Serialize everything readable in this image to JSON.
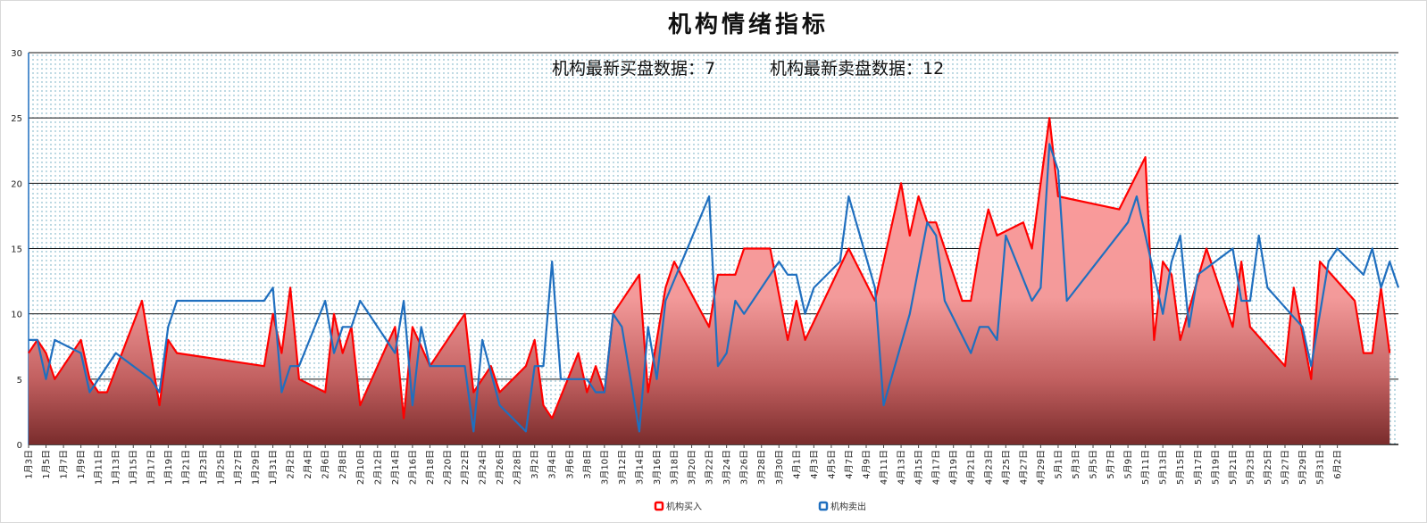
{
  "chart_data": {
    "type": "area",
    "title": "机构情绪指标",
    "subtitle_buy": "机构最新买盘数据：7",
    "subtitle_sell": "机构最新卖盘数据：12",
    "ylim": [
      0,
      30
    ],
    "yticks": [
      0,
      5,
      10,
      15,
      20,
      25,
      30
    ],
    "grid": true,
    "legend_position": "bottom-center",
    "tick_labels": [
      "1月3日",
      "1月5日",
      "1月7日",
      "1月9日",
      "1月11日",
      "1月13日",
      "1月15日",
      "1月17日",
      "1月19日",
      "1月21日",
      "1月23日",
      "1月25日",
      "1月27日",
      "1月29日",
      "1月31日",
      "2月2日",
      "2月4日",
      "2月6日",
      "2月8日",
      "2月10日",
      "2月12日",
      "2月14日",
      "2月16日",
      "2月18日",
      "2月20日",
      "2月22日",
      "2月24日",
      "2月26日",
      "2月28日",
      "3月2日",
      "3月4日",
      "3月6日",
      "3月8日",
      "3月10日",
      "3月12日",
      "3月14日",
      "3月16日",
      "3月18日",
      "3月20日",
      "3月22日",
      "3月24日",
      "3月26日",
      "3月28日",
      "3月30日",
      "4月1日",
      "4月3日",
      "4月5日",
      "4月7日",
      "4月9日",
      "4月11日",
      "4月13日",
      "4月15日",
      "4月17日",
      "4月19日",
      "4月21日",
      "4月23日",
      "4月25日",
      "4月27日",
      "4月29日",
      "5月1日",
      "5月3日",
      "5月5日",
      "5月7日",
      "5月9日",
      "5月11日",
      "5月13日",
      "5月15日",
      "5月17日",
      "5月19日",
      "5月21日",
      "5月23日",
      "5月25日",
      "5月27日",
      "5月29日",
      "5月31日",
      "6月2日"
    ],
    "series": [
      {
        "name": "机构买入",
        "color": "#ff0000",
        "points": [
          [
            0,
            7
          ],
          [
            0.5,
            8
          ],
          [
            1,
            7
          ],
          [
            1.5,
            5
          ],
          [
            3,
            8
          ],
          [
            3.5,
            5
          ],
          [
            4,
            4
          ],
          [
            4.5,
            4
          ],
          [
            6.5,
            11
          ],
          [
            7.5,
            3
          ],
          [
            8,
            8
          ],
          [
            8.5,
            7
          ],
          [
            13.5,
            6
          ],
          [
            14,
            10
          ],
          [
            14.5,
            7
          ],
          [
            15,
            12
          ],
          [
            15.5,
            5
          ],
          [
            17,
            4
          ],
          [
            17.5,
            10
          ],
          [
            18,
            7
          ],
          [
            18.5,
            9
          ],
          [
            19,
            3
          ],
          [
            21,
            9
          ],
          [
            21.5,
            2
          ],
          [
            22,
            9
          ],
          [
            23,
            6
          ],
          [
            25,
            10
          ],
          [
            25.5,
            4
          ],
          [
            26.5,
            6
          ],
          [
            27,
            4
          ],
          [
            28.5,
            6
          ],
          [
            29,
            8
          ],
          [
            29.5,
            3
          ],
          [
            30,
            2
          ],
          [
            31.5,
            7
          ],
          [
            32,
            4
          ],
          [
            32.5,
            6
          ],
          [
            33,
            4
          ],
          [
            33.5,
            10
          ],
          [
            35,
            13
          ],
          [
            35.5,
            4
          ],
          [
            36.5,
            12
          ],
          [
            37,
            14
          ],
          [
            39,
            9
          ],
          [
            39.5,
            13
          ],
          [
            40.5,
            13
          ],
          [
            41,
            15
          ],
          [
            42.5,
            15
          ],
          [
            43.5,
            8
          ],
          [
            44,
            11
          ],
          [
            44.5,
            8
          ],
          [
            47,
            15
          ],
          [
            48.5,
            11
          ],
          [
            50,
            20
          ],
          [
            50.5,
            16
          ],
          [
            51,
            19
          ],
          [
            51.5,
            17
          ],
          [
            52,
            17
          ],
          [
            53.5,
            11
          ],
          [
            54,
            11
          ],
          [
            54.5,
            15
          ],
          [
            55,
            18
          ],
          [
            55.5,
            16
          ],
          [
            57,
            17
          ],
          [
            57.5,
            15
          ],
          [
            58.5,
            25
          ],
          [
            59,
            19
          ],
          [
            62.5,
            18
          ],
          [
            64,
            22
          ],
          [
            64.5,
            8
          ],
          [
            65,
            14
          ],
          [
            65.5,
            13
          ],
          [
            66,
            8
          ],
          [
            67.5,
            15
          ],
          [
            68.5,
            11
          ],
          [
            69,
            9
          ],
          [
            69.5,
            14
          ],
          [
            70,
            9
          ],
          [
            72,
            6
          ],
          [
            72.5,
            12
          ],
          [
            73.5,
            5
          ],
          [
            74,
            14
          ],
          [
            76,
            11
          ],
          [
            76.5,
            7
          ],
          [
            77,
            7
          ],
          [
            77.5,
            12
          ],
          [
            78,
            7
          ]
        ]
      },
      {
        "name": "机构卖出",
        "color": "#1f6fbf",
        "points": [
          [
            0,
            8
          ],
          [
            0.5,
            8
          ],
          [
            1,
            5
          ],
          [
            1.5,
            8
          ],
          [
            3,
            7
          ],
          [
            3.5,
            4
          ],
          [
            5,
            7
          ],
          [
            7,
            5
          ],
          [
            7.5,
            4
          ],
          [
            8,
            9
          ],
          [
            8.5,
            11
          ],
          [
            13.5,
            11
          ],
          [
            14,
            12
          ],
          [
            14.5,
            4
          ],
          [
            15,
            6
          ],
          [
            15.5,
            6
          ],
          [
            17,
            11
          ],
          [
            17.5,
            7
          ],
          [
            18,
            9
          ],
          [
            18.5,
            9
          ],
          [
            19,
            11
          ],
          [
            21,
            7
          ],
          [
            21.5,
            11
          ],
          [
            22,
            3
          ],
          [
            22.5,
            9
          ],
          [
            23,
            6
          ],
          [
            25,
            6
          ],
          [
            25.5,
            1
          ],
          [
            26,
            8
          ],
          [
            27,
            3
          ],
          [
            28.5,
            1
          ],
          [
            29,
            6
          ],
          [
            29.5,
            6
          ],
          [
            30,
            14
          ],
          [
            30.5,
            5
          ],
          [
            32,
            5
          ],
          [
            32.5,
            4
          ],
          [
            33,
            4
          ],
          [
            33.5,
            10
          ],
          [
            34,
            9
          ],
          [
            35,
            1
          ],
          [
            35.5,
            9
          ],
          [
            36,
            5
          ],
          [
            36.5,
            11
          ],
          [
            39,
            19
          ],
          [
            39.5,
            6
          ],
          [
            40,
            7
          ],
          [
            40.5,
            11
          ],
          [
            41,
            10
          ],
          [
            43,
            14
          ],
          [
            43.5,
            13
          ],
          [
            44,
            13
          ],
          [
            44.5,
            10
          ],
          [
            45,
            12
          ],
          [
            46.5,
            14
          ],
          [
            47,
            19
          ],
          [
            48.5,
            12
          ],
          [
            49,
            3
          ],
          [
            50.5,
            10
          ],
          [
            51.5,
            17
          ],
          [
            52,
            16
          ],
          [
            52.5,
            11
          ],
          [
            54,
            7
          ],
          [
            54.5,
            9
          ],
          [
            55,
            9
          ],
          [
            55.5,
            8
          ],
          [
            56,
            16
          ],
          [
            57.5,
            11
          ],
          [
            58,
            12
          ],
          [
            58.5,
            23
          ],
          [
            59,
            21
          ],
          [
            59.5,
            11
          ],
          [
            63,
            17
          ],
          [
            63.5,
            19
          ],
          [
            65,
            10
          ],
          [
            65.5,
            14
          ],
          [
            66,
            16
          ],
          [
            66.5,
            9
          ],
          [
            67,
            13
          ],
          [
            69,
            15
          ],
          [
            69.5,
            11
          ],
          [
            70,
            11
          ],
          [
            70.5,
            16
          ],
          [
            71,
            12
          ],
          [
            73,
            9
          ],
          [
            73.5,
            6
          ],
          [
            74.5,
            14
          ],
          [
            75,
            15
          ],
          [
            76.5,
            13
          ],
          [
            77,
            15
          ],
          [
            77.5,
            12
          ],
          [
            78,
            14
          ],
          [
            78.5,
            12
          ]
        ]
      }
    ]
  },
  "legend": {
    "buy_label": "机构买入",
    "sell_label": "机构卖出"
  }
}
